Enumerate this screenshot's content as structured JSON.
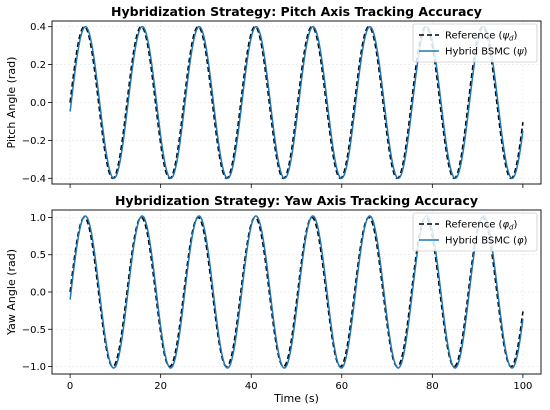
{
  "chart_data": [
    {
      "type": "line",
      "title": "Hybridization Strategy: Pitch Axis Tracking Accuracy",
      "xlabel": "",
      "ylabel": "Pitch Angle (rad)",
      "xlim": [
        -4,
        104
      ],
      "ylim": [
        -0.43,
        0.43
      ],
      "xticks": [
        0,
        20,
        40,
        60,
        80,
        100
      ],
      "xtick_labels": [
        "",
        "",
        "",
        "",
        "",
        ""
      ],
      "yticks": [
        -0.4,
        -0.2,
        0.0,
        0.2,
        0.4
      ],
      "ytick_labels": [
        "−0.4",
        "−0.2",
        "0.0",
        "0.2",
        "0.4"
      ],
      "grid": true,
      "legend": "top-right",
      "x_range": [
        0,
        100
      ],
      "series": [
        {
          "name": "Reference (ψd)",
          "legend_main": "Reference (",
          "legend_sym": "ψ",
          "legend_sub": "d",
          "legend_end": ")",
          "color": "#000000",
          "style": "dashed",
          "amplitude": 0.4,
          "period": 12.566,
          "phase": 0,
          "start_offset": 0.0
        },
        {
          "name": "Hybrid BSMC (ψ)",
          "legend_main": "Hybrid BSMC (",
          "legend_sym": "ψ",
          "legend_sub": "",
          "legend_end": ")",
          "color": "#1f77b4",
          "style": "solid",
          "amplitude": 0.4,
          "period": 12.566,
          "phase": -0.12,
          "start_offset": 0.0
        }
      ]
    },
    {
      "type": "line",
      "title": "Hybridization Strategy: Yaw Axis Tracking Accuracy",
      "xlabel": "Time (s)",
      "ylabel": "Yaw Angle (rad)",
      "xlim": [
        -4,
        104
      ],
      "ylim": [
        -1.1,
        1.1
      ],
      "xticks": [
        0,
        20,
        40,
        60,
        80,
        100
      ],
      "xtick_labels": [
        "0",
        "20",
        "40",
        "60",
        "80",
        "100"
      ],
      "yticks": [
        -1.0,
        -0.5,
        0.0,
        0.5,
        1.0
      ],
      "ytick_labels": [
        "−1.0",
        "−0.5",
        "0.0",
        "0.5",
        "1.0"
      ],
      "grid": true,
      "legend": "top-right",
      "x_range": [
        0,
        100
      ],
      "series": [
        {
          "name": "Reference (φd)",
          "legend_main": "Reference (",
          "legend_sym": "φ",
          "legend_sub": "d",
          "legend_end": ")",
          "color": "#000000",
          "style": "dashed",
          "amplitude": 1.0,
          "period": 12.566,
          "phase": 0,
          "start_offset": 0.0
        },
        {
          "name": "Hybrid BSMC (φ)",
          "legend_main": "Hybrid BSMC (",
          "legend_sym": "φ",
          "legend_sub": "",
          "legend_end": ")",
          "color": "#1f77b4",
          "style": "solid",
          "amplitude": 1.02,
          "period": 12.566,
          "phase": -0.1,
          "start_offset": 0.0
        }
      ]
    }
  ]
}
